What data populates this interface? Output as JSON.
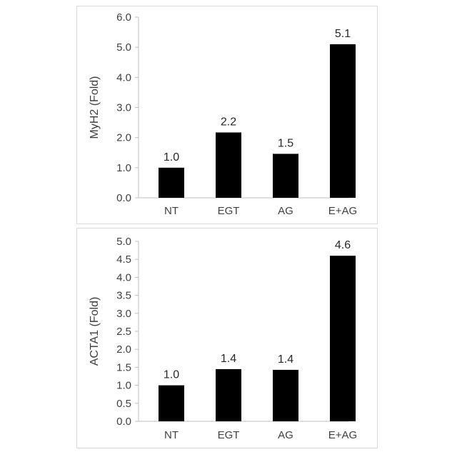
{
  "chart_data": [
    {
      "type": "bar",
      "categories": [
        "NT",
        "EGT",
        "AG",
        "E+AG"
      ],
      "values": [
        1.0,
        2.2,
        1.5,
        5.1
      ],
      "plotted_values": [
        1.0,
        2.17,
        1.46,
        5.1
      ],
      "data_labels": [
        "1.0",
        "2.2",
        "1.5",
        "5.1"
      ],
      "ylabel": "MyH2 (Fold)",
      "xlabel": "",
      "ylim": [
        0,
        6
      ],
      "yticks": [
        "0.0",
        "1.0",
        "2.0",
        "3.0",
        "4.0",
        "5.0",
        "6.0"
      ],
      "bar_color": "#000000",
      "grid": false
    },
    {
      "type": "bar",
      "categories": [
        "NT",
        "EGT",
        "AG",
        "E+AG"
      ],
      "values": [
        1.0,
        1.4,
        1.4,
        4.6
      ],
      "plotted_values": [
        1.0,
        1.45,
        1.43,
        4.6
      ],
      "data_labels": [
        "1.0",
        "1.4",
        "1.4",
        "4.6"
      ],
      "ylabel": "ACTA1 (Fold)",
      "xlabel": "",
      "ylim": [
        0,
        5
      ],
      "yticks": [
        "0.0",
        "0.5",
        "1.0",
        "1.5",
        "2.0",
        "2.5",
        "3.0",
        "3.5",
        "4.0",
        "4.5",
        "5.0"
      ],
      "bar_color": "#000000",
      "grid": false
    }
  ]
}
